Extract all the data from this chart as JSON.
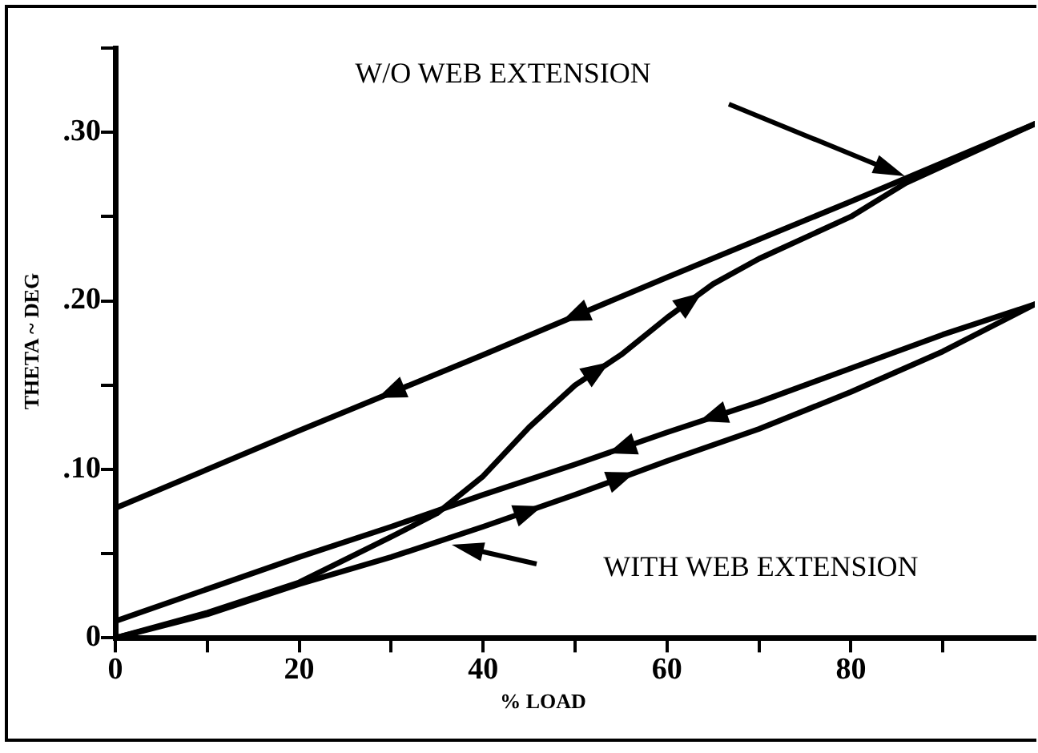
{
  "chart_data": {
    "type": "line",
    "xlabel": "% LOAD",
    "ylabel": "THETA ~ DEG",
    "xlim": [
      0,
      100
    ],
    "xticks": [
      0,
      {
        "value": 10,
        "label": null
      },
      20,
      {
        "value": 30,
        "label": null
      },
      40,
      {
        "value": 50,
        "label": null
      },
      60,
      {
        "value": 70,
        "label": null
      },
      80,
      {
        "value": 90,
        "label": null
      }
    ],
    "ylim": [
      0,
      0.35
    ],
    "yticks": [
      0,
      {
        "value": 0.05,
        "label": null
      },
      {
        "value": 0.1,
        "label": ".10"
      },
      {
        "value": 0.15,
        "label": null
      },
      {
        "value": 0.2,
        "label": ".20"
      },
      {
        "value": 0.25,
        "label": null
      },
      {
        "value": 0.3,
        "label": ".30"
      },
      {
        "value": 0.35,
        "label": null
      }
    ],
    "grid": false,
    "legend": false,
    "marker": "none",
    "line_style": "solid",
    "series": [
      {
        "color": "#000000",
        "x": [
          0,
          10,
          20,
          30,
          35,
          40,
          45,
          50,
          55,
          60,
          65,
          70,
          80,
          86,
          90,
          100
        ],
        "values": [
          0,
          0.015,
          0.033,
          0.06,
          0.074,
          0.096,
          0.125,
          0.15,
          0.168,
          0.19,
          0.21,
          0.225,
          0.25,
          0.27,
          0.28,
          0.305
        ]
      },
      {
        "color": "#000000",
        "x": [
          100,
          80,
          60,
          40,
          20,
          0
        ],
        "values": [
          0.305,
          0.259,
          0.214,
          0.168,
          0.123,
          0.077
        ]
      },
      {
        "color": "#000000",
        "x": [
          0,
          10,
          20,
          30,
          40,
          50,
          60,
          70,
          80,
          90,
          100
        ],
        "values": [
          0,
          0.014,
          0.032,
          0.048,
          0.066,
          0.085,
          0.105,
          0.124,
          0.146,
          0.17,
          0.198
        ]
      },
      {
        "color": "#000000",
        "x": [
          100,
          90,
          80,
          70,
          60,
          50,
          40,
          30,
          20,
          10,
          0
        ],
        "values": [
          0.198,
          0.18,
          0.16,
          0.14,
          0.122,
          0.103,
          0.085,
          0.066,
          0.048,
          0.029,
          0.01
        ]
      }
    ],
    "annotations": [
      "W/O WEB EXTENSION",
      "WITH WEB EXTENSION"
    ]
  }
}
